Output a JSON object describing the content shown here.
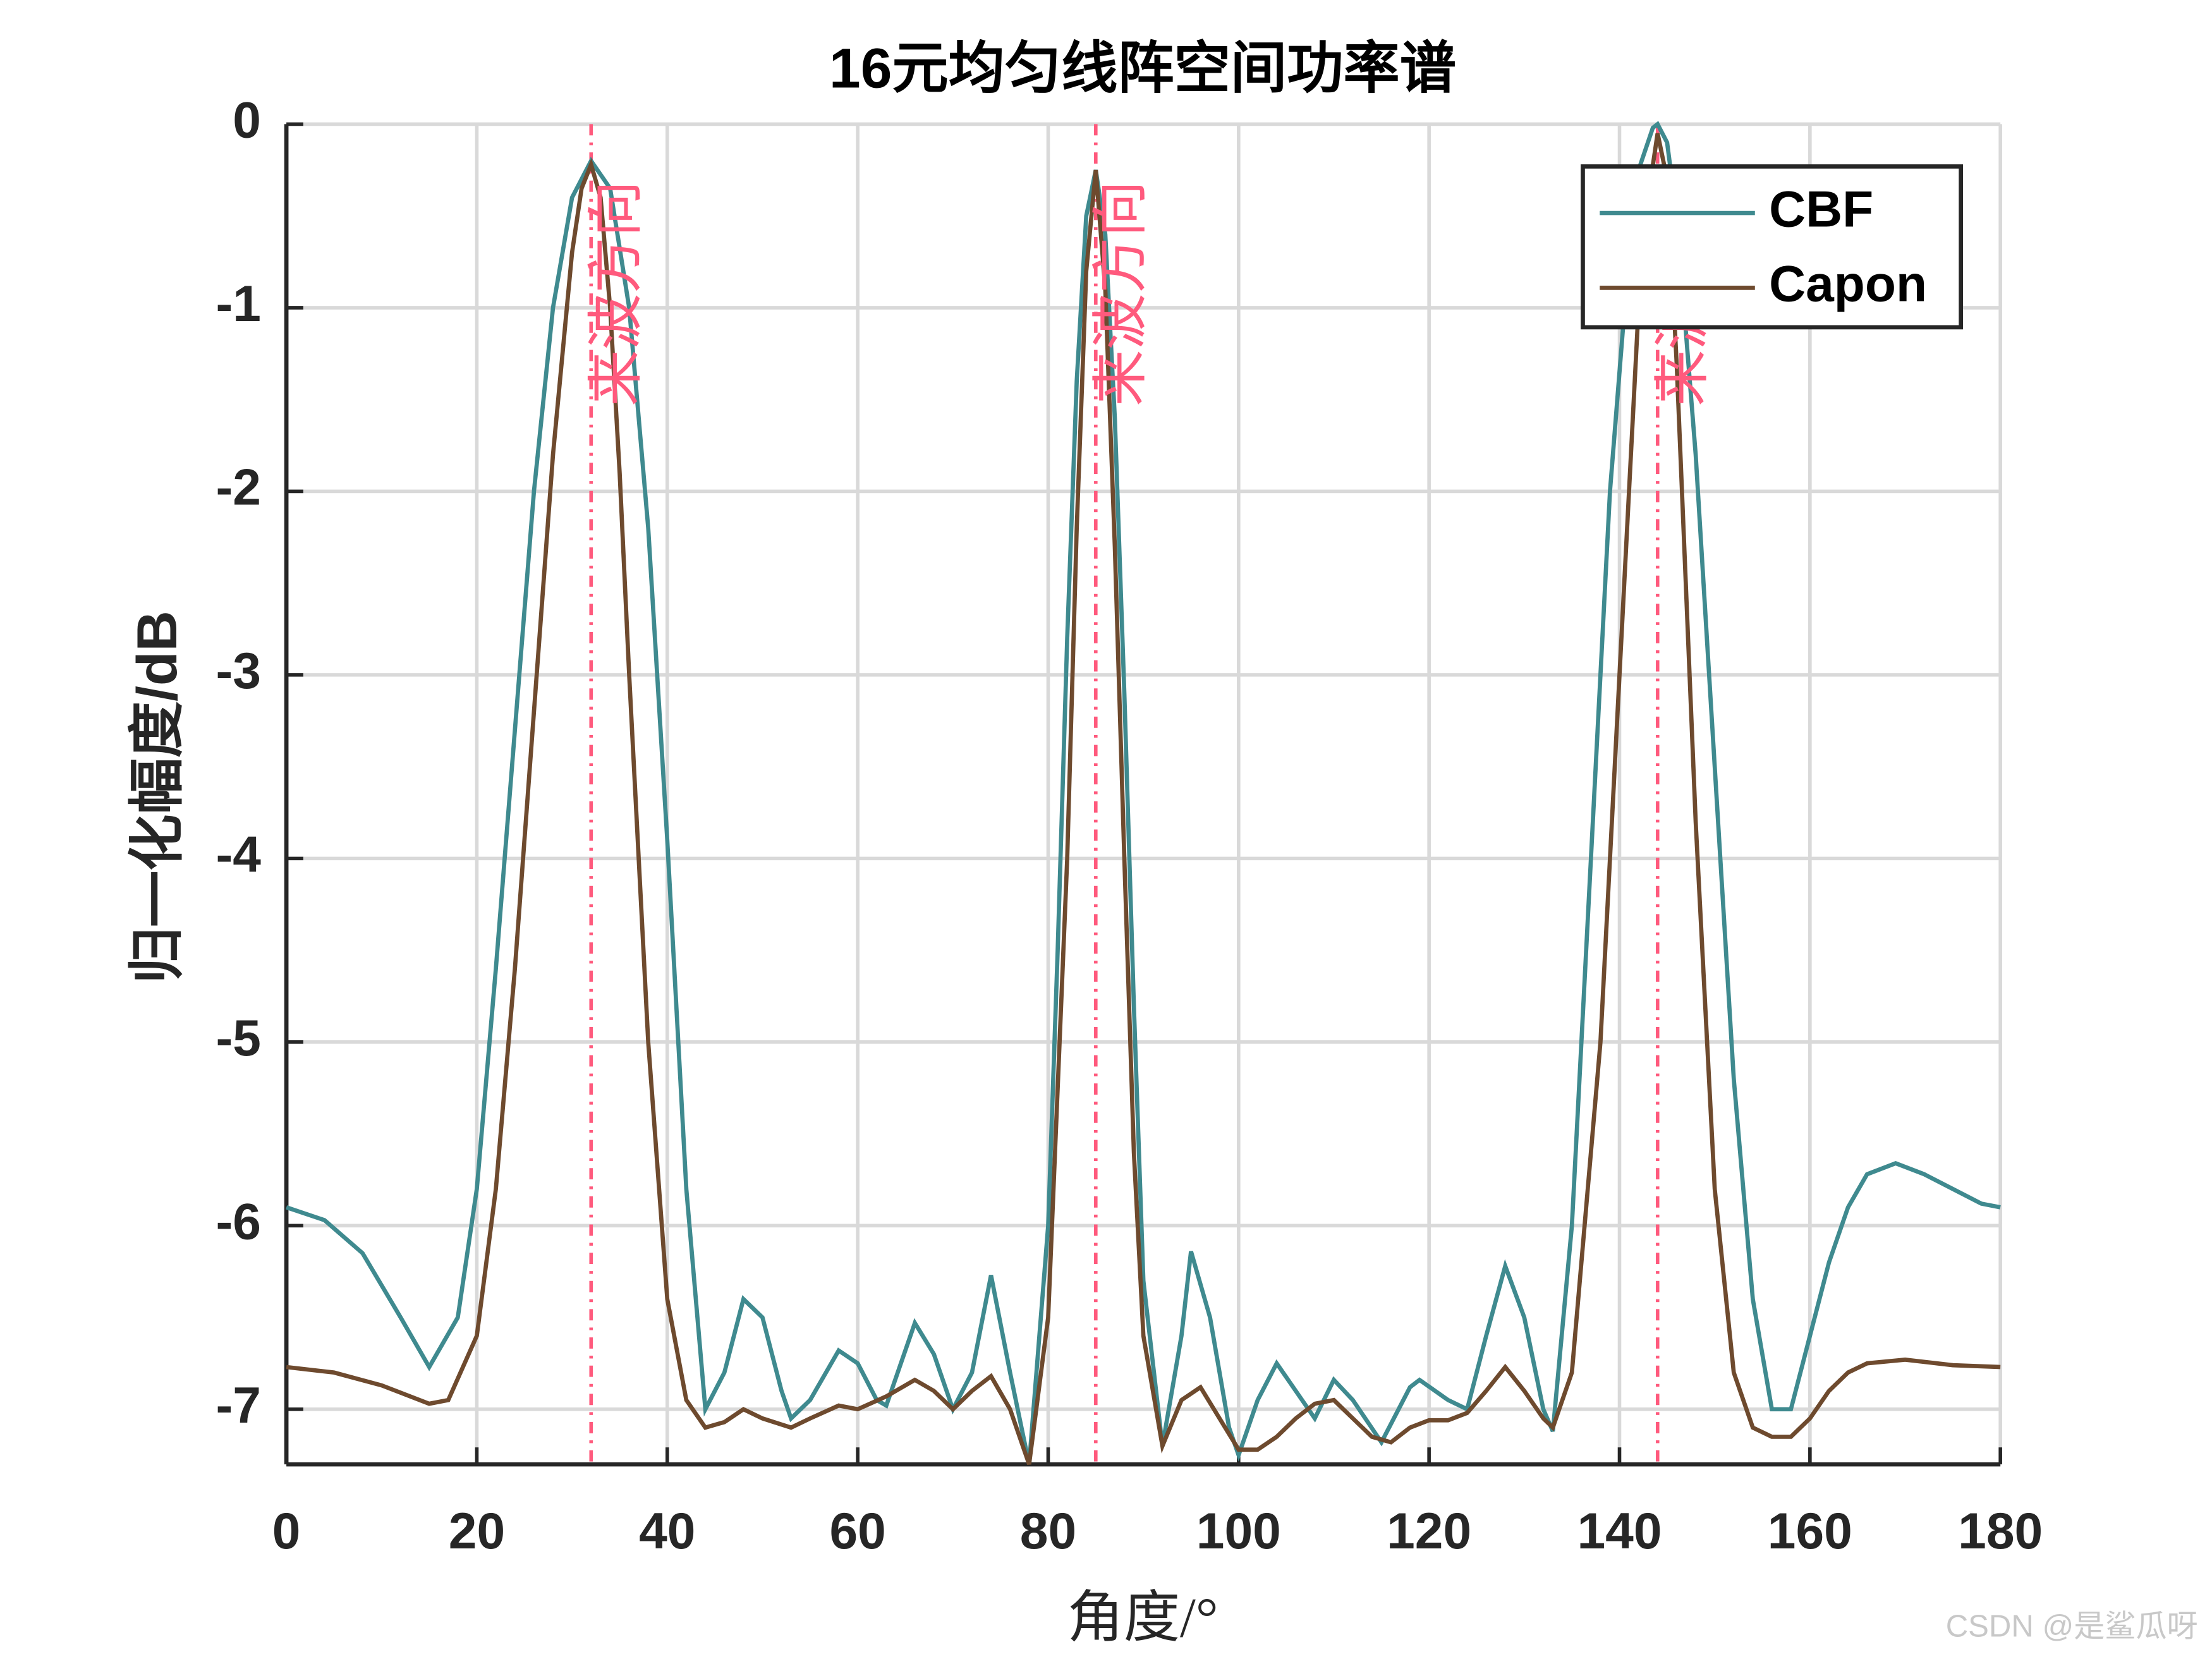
{
  "chart_data": {
    "type": "line",
    "title": "16元均匀线阵空间功率谱",
    "x_label": "角度/°",
    "y_label": "归一化幅度/dB",
    "xlim": [
      0,
      180
    ],
    "xticks": [
      0,
      20,
      40,
      60,
      80,
      100,
      120,
      140,
      160,
      180
    ],
    "ylim": [
      -7.3,
      0
    ],
    "yticks": [
      0,
      -1,
      -2,
      -3,
      -4,
      -5,
      -6,
      -7
    ],
    "grid": true,
    "legend": "upper right",
    "annotations": [
      {
        "text": "来波方向",
        "x": 32,
        "color": "#ff5a7d"
      },
      {
        "text": "来波方向",
        "x": 85,
        "color": "#ff5a7d"
      },
      {
        "text": "来波方向",
        "x": 144,
        "color": "#ff5a7d"
      }
    ],
    "watermark": "CSDN @是鲨瓜呀",
    "series": [
      {
        "name": "CBF",
        "color": "#3f8a8f",
        "x": [
          0,
          4,
          8,
          12,
          15,
          18,
          20,
          22,
          24,
          26,
          28,
          30,
          32,
          34,
          36,
          38,
          40,
          42,
          44,
          46,
          48,
          50,
          52,
          53,
          55,
          58,
          60,
          62,
          63,
          66,
          68,
          70,
          72,
          74,
          76,
          78,
          80,
          81,
          82,
          83,
          84,
          85,
          86,
          87,
          88,
          89,
          90,
          92,
          94,
          95,
          97,
          99,
          100,
          102,
          104,
          106,
          108,
          110,
          112,
          115,
          118,
          119,
          122,
          124,
          126,
          128,
          130,
          132,
          133,
          135,
          137,
          139,
          141,
          142,
          143.5,
          144,
          145,
          146,
          148,
          150,
          152,
          154,
          156,
          158,
          160,
          162,
          164,
          166,
          169,
          172,
          175,
          178,
          180
        ],
        "values": [
          -5.9,
          -5.97,
          -6.15,
          -6.5,
          -6.77,
          -6.5,
          -5.8,
          -4.6,
          -3.3,
          -2.0,
          -1.0,
          -0.4,
          -0.2,
          -0.35,
          -1.0,
          -2.2,
          -3.9,
          -5.8,
          -7.0,
          -6.8,
          -6.4,
          -6.5,
          -6.9,
          -7.05,
          -6.95,
          -6.68,
          -6.75,
          -6.95,
          -6.98,
          -6.53,
          -6.7,
          -7.0,
          -6.8,
          -6.27,
          -6.8,
          -7.3,
          -6.0,
          -4.5,
          -2.8,
          -1.4,
          -0.5,
          -0.25,
          -0.6,
          -1.6,
          -3.1,
          -4.8,
          -6.3,
          -7.2,
          -6.6,
          -6.14,
          -6.5,
          -7.1,
          -7.25,
          -6.95,
          -6.75,
          -6.9,
          -7.05,
          -6.84,
          -6.95,
          -7.18,
          -6.88,
          -6.84,
          -6.95,
          -7.0,
          -6.6,
          -6.22,
          -6.5,
          -7.0,
          -7.12,
          -6.0,
          -4.0,
          -2.0,
          -0.7,
          -0.25,
          -0.02,
          0,
          -0.1,
          -0.5,
          -1.8,
          -3.5,
          -5.2,
          -6.4,
          -7.0,
          -7.0,
          -6.6,
          -6.2,
          -5.9,
          -5.72,
          -5.66,
          -5.72,
          -5.8,
          -5.88,
          -5.9
        ]
      },
      {
        "name": "Capon",
        "color": "#6e4a2e",
        "x": [
          0,
          5,
          10,
          15,
          17,
          20,
          22,
          24,
          26,
          28,
          30,
          31,
          32,
          33,
          34,
          35,
          36,
          38,
          40,
          42,
          44,
          46,
          48,
          50,
          53,
          55,
          58,
          60,
          63,
          66,
          68,
          70,
          72,
          74,
          76,
          78,
          80,
          82,
          83,
          84,
          85,
          86,
          87,
          88,
          89,
          90,
          92,
          94,
          96,
          98,
          100,
          102,
          104,
          106,
          108,
          110,
          112,
          114,
          116,
          118,
          120,
          122,
          124,
          126,
          128,
          130,
          132,
          133,
          135,
          138,
          140,
          142,
          143,
          144,
          145,
          146,
          148,
          150,
          152,
          154,
          156,
          158,
          160,
          162,
          164,
          166,
          170,
          175,
          180
        ],
        "values": [
          -6.77,
          -6.8,
          -6.87,
          -6.97,
          -6.95,
          -6.6,
          -5.8,
          -4.6,
          -3.2,
          -1.8,
          -0.7,
          -0.35,
          -0.22,
          -0.4,
          -1.0,
          -1.9,
          -3.0,
          -5.0,
          -6.4,
          -6.95,
          -7.1,
          -7.07,
          -7.0,
          -7.05,
          -7.1,
          -7.05,
          -6.98,
          -7.0,
          -6.93,
          -6.84,
          -6.9,
          -7.0,
          -6.9,
          -6.82,
          -7.0,
          -7.3,
          -6.5,
          -4.0,
          -2.2,
          -0.8,
          -0.25,
          -0.9,
          -2.3,
          -4.0,
          -5.6,
          -6.6,
          -7.2,
          -6.95,
          -6.88,
          -7.05,
          -7.22,
          -7.22,
          -7.15,
          -7.05,
          -6.97,
          -6.95,
          -7.05,
          -7.15,
          -7.18,
          -7.1,
          -7.06,
          -7.06,
          -7.02,
          -6.9,
          -6.77,
          -6.9,
          -7.05,
          -7.1,
          -6.8,
          -5.0,
          -3.0,
          -1.0,
          -0.4,
          -0.05,
          -0.3,
          -1.3,
          -3.8,
          -5.8,
          -6.8,
          -7.1,
          -7.15,
          -7.15,
          -7.05,
          -6.9,
          -6.8,
          -6.75,
          -6.73,
          -6.76,
          -6.77
        ]
      }
    ]
  }
}
